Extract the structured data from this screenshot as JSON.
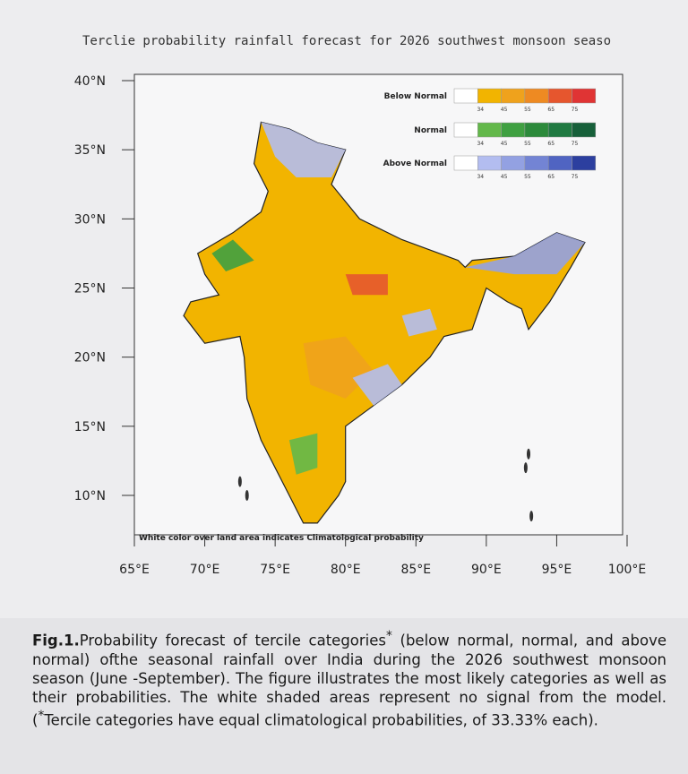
{
  "figure": {
    "title": "Terclie probability rainfall forecast for 2026 southwest monsoon  seaso",
    "lat_ticks": [
      {
        "value": 40,
        "label": "40°N"
      },
      {
        "value": 35,
        "label": "35°N"
      },
      {
        "value": 30,
        "label": "30°N"
      },
      {
        "value": 25,
        "label": "25°N"
      },
      {
        "value": 20,
        "label": "20°N"
      },
      {
        "value": 15,
        "label": "15°N"
      },
      {
        "value": 10,
        "label": "10°N"
      }
    ],
    "lon_ticks": [
      {
        "value": 65,
        "label": "65°E"
      },
      {
        "value": 70,
        "label": "70°E"
      },
      {
        "value": 75,
        "label": "75°E"
      },
      {
        "value": 80,
        "label": "80°E"
      },
      {
        "value": 85,
        "label": "85°E"
      },
      {
        "value": 90,
        "label": "90°E"
      },
      {
        "value": 95,
        "label": "95°E"
      },
      {
        "value": 100,
        "label": "100°E"
      }
    ],
    "legend": [
      {
        "label": "Below Normal",
        "colors": [
          "#ffffff",
          "#f2b400",
          "#efa21c",
          "#ee8a22",
          "#e6562e",
          "#e03434"
        ]
      },
      {
        "label": "Normal",
        "colors": [
          "#ffffff",
          "#63b84a",
          "#3fa041",
          "#2c8a3b",
          "#207a42",
          "#17603a"
        ]
      },
      {
        "label": "Above Normal",
        "colors": [
          "#ffffff",
          "#b3bdf0",
          "#93a1e2",
          "#7384d4",
          "#5064c2",
          "#2c3f9f"
        ]
      }
    ],
    "legend_ticks": [
      34,
      45,
      55,
      65,
      75
    ],
    "note": "White color over land area indicates Climatological probability"
  },
  "caption": {
    "label": "Fig.1.",
    "parts": [
      "Probability forecast of tercile categories",
      "*",
      " (below normal, normal, and above normal) ofthe seasonal rainfall over India during the 2026 southwest monsoon season (June -September).  The figure illustrates the most likely categories as well as their probabilities.   The white shaded areas represent no signal from the model.(",
      "*",
      "Tercile categories have equal climatological probabilities, of 33.33% each)."
    ]
  }
}
